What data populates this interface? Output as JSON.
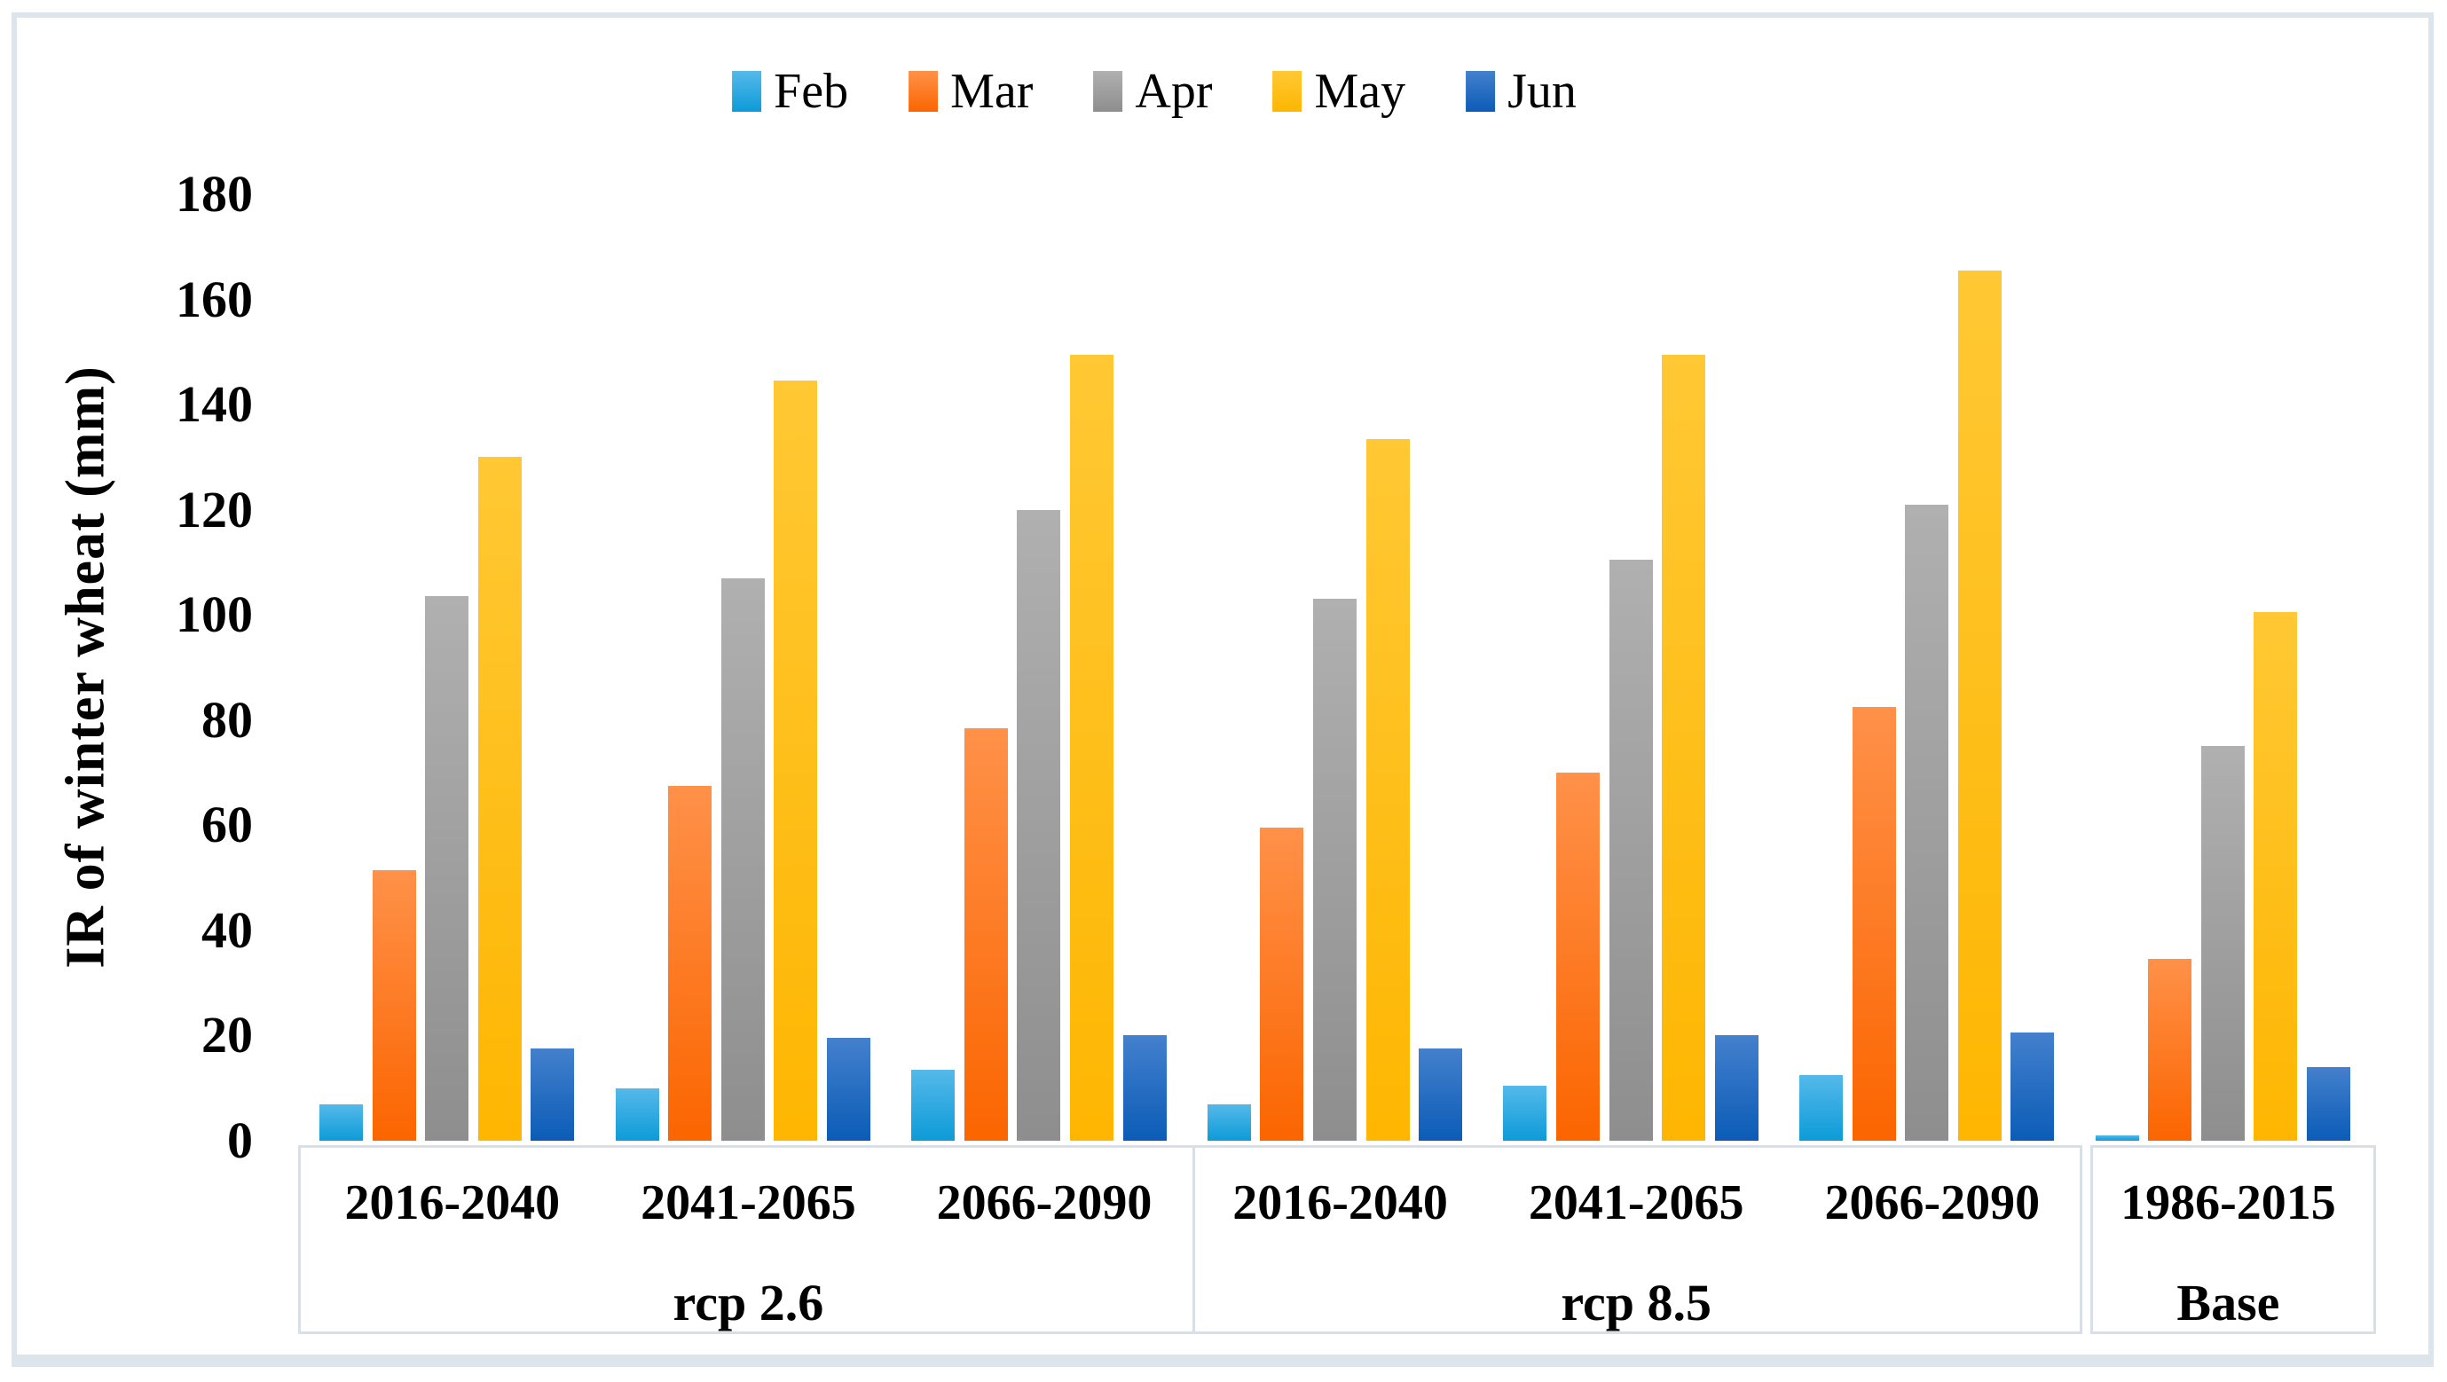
{
  "figure": {
    "frame_color": "#dce4ec",
    "axis_line_color": "#d9dfe7",
    "background": "#ffffff"
  },
  "chart_data": {
    "type": "bar",
    "title": "",
    "xlabel": "",
    "ylabel": "IR of winter wheat (mm)",
    "ylim": [
      0,
      180
    ],
    "yticks": [
      0,
      20,
      40,
      60,
      80,
      100,
      120,
      140,
      160,
      180
    ],
    "grid": false,
    "legend_position": "top-center",
    "categories": [
      "2016-2040",
      "2041-2065",
      "2066-2090",
      "2016-2040",
      "2041-2065",
      "2066-2090",
      "1986-2015"
    ],
    "sections": [
      {
        "label": "rcp 2.6",
        "span": 3
      },
      {
        "label": "rcp 8.5",
        "span": 3
      },
      {
        "label": "Base",
        "span": 1
      }
    ],
    "series": [
      {
        "name": "Feb",
        "color": "#29a2dc",
        "gradient_top": "#55b9ea",
        "gradient_bottom": "#0d9bd8",
        "values": [
          7,
          10,
          13.5,
          7,
          10.5,
          12.5,
          1
        ]
      },
      {
        "name": "Mar",
        "color": "#fd7e2c",
        "gradient_top": "#ff9149",
        "gradient_bottom": "#fb6500",
        "values": [
          51.5,
          67.5,
          78.5,
          59.5,
          70,
          82.5,
          34.5
        ]
      },
      {
        "name": "Apr",
        "color": "#a6a6a6",
        "gradient_top": "#b0b0b0",
        "gradient_bottom": "#8e8e8e",
        "values": [
          103.5,
          107,
          120,
          103,
          110.5,
          121,
          75
        ]
      },
      {
        "name": "May",
        "color": "#fec00f",
        "gradient_top": "#ffc834",
        "gradient_bottom": "#feb601",
        "values": [
          130,
          144.5,
          149.5,
          133.5,
          149.5,
          165.5,
          100.5
        ]
      },
      {
        "name": "Jun",
        "color": "#2f70c3",
        "gradient_top": "#4480cd",
        "gradient_bottom": "#0b5cb7",
        "values": [
          17.5,
          19.5,
          20,
          17.5,
          20,
          20.5,
          14
        ]
      }
    ]
  }
}
